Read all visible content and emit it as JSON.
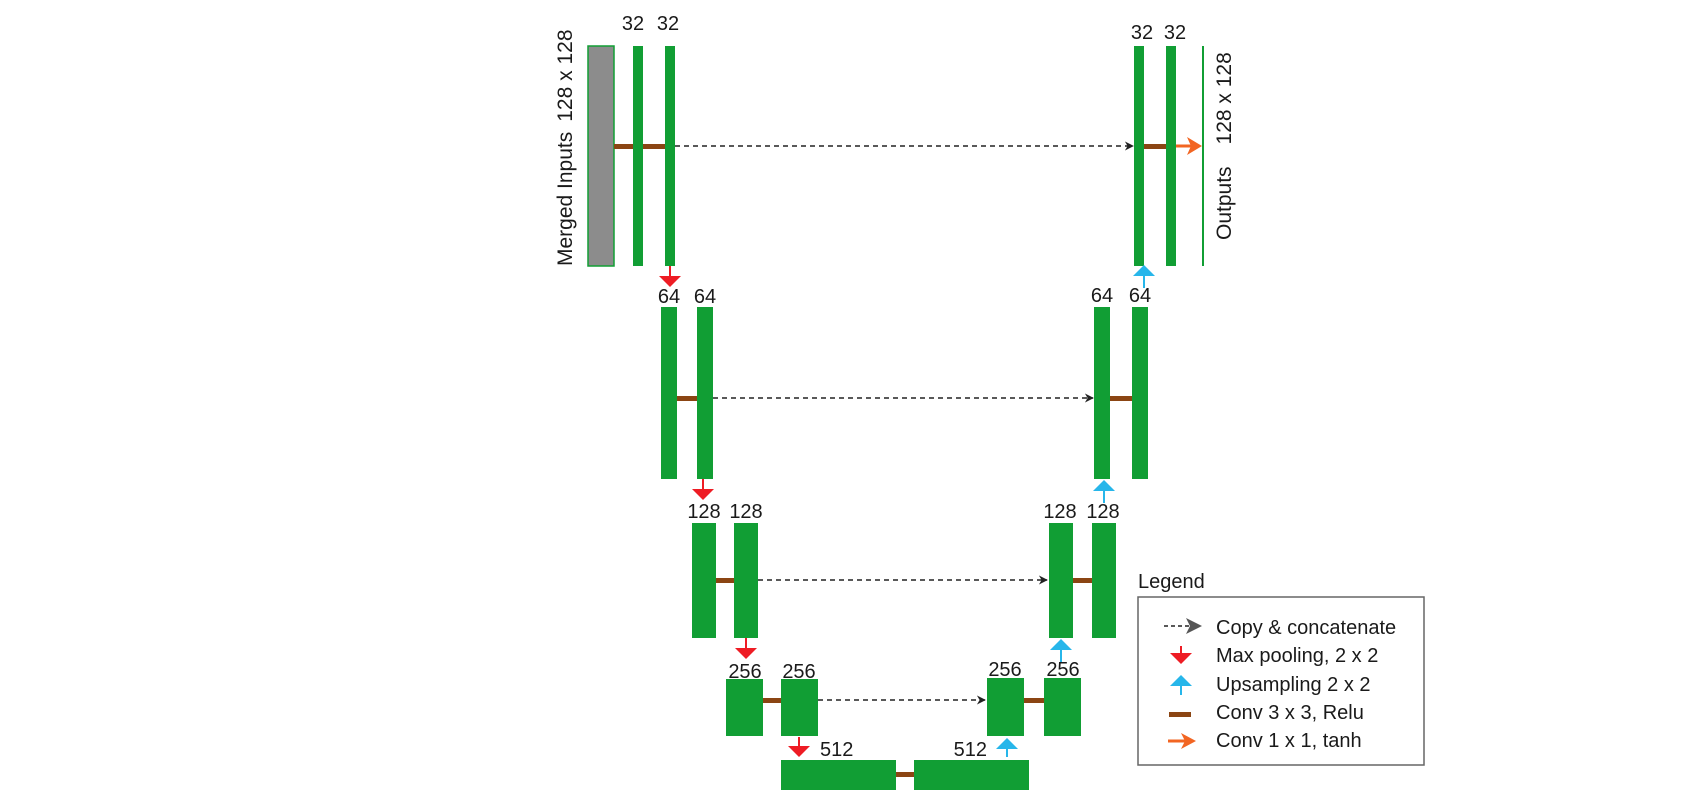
{
  "input_label": "Merged Inputs",
  "input_size": "128 x 128",
  "output_label": "Outputs",
  "output_size": "128 x 128",
  "channels": {
    "enc1_a": "32",
    "enc1_b": "32",
    "dec1_a": "32",
    "dec1_b": "32",
    "enc2_a": "64",
    "enc2_b": "64",
    "dec2_a": "64",
    "dec2_b": "64",
    "enc3_a": "128",
    "enc3_b": "128",
    "dec3_a": "128",
    "dec3_b": "128",
    "enc4_a": "256",
    "enc4_b": "256",
    "dec4_a": "256",
    "dec4_b": "256",
    "bottleneck_a": "512",
    "bottleneck_b": "512"
  },
  "legend": {
    "title": "Legend",
    "items": [
      {
        "label": "Copy & concatenate",
        "icon": "dashed-arrow-icon"
      },
      {
        "label": "Max pooling, 2 x 2",
        "icon": "red-down-arrow-icon"
      },
      {
        "label": "Upsampling 2 x 2",
        "icon": "blue-up-arrow-icon"
      },
      {
        "label": "Conv 3 x 3, Relu",
        "icon": "brown-bar-icon"
      },
      {
        "label": "Conv 1 x 1, tanh",
        "icon": "orange-arrow-icon"
      }
    ]
  },
  "colors": {
    "feature_map": "#119e34",
    "input_fill": "#8c8c8c",
    "conv3x3": "#8b4513",
    "maxpool": "#ee1c24",
    "upsample": "#27b6ea",
    "conv1x1": "#f26522",
    "copy": "#222222"
  }
}
